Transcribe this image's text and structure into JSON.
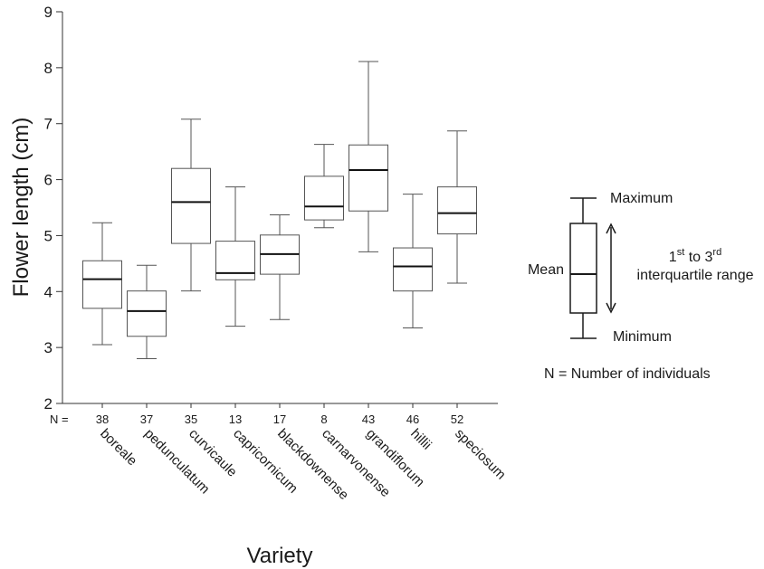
{
  "chart_data": {
    "type": "boxplot",
    "ylabel": "Flower length (cm)",
    "xlabel": "Variety",
    "ylim": [
      2,
      9
    ],
    "yticks": [
      2,
      3,
      4,
      5,
      6,
      7,
      8,
      9
    ],
    "n_prefix": "N =",
    "categories": [
      "boreale",
      "pedunculatum",
      "curvicaule",
      "capricornicum",
      "blackdownense",
      "carnarvonense",
      "grandiflorum",
      "hillii",
      "speciosum"
    ],
    "n": [
      "38",
      "37",
      "35",
      "13",
      "17",
      "8",
      "43",
      "46",
      "52"
    ],
    "boxes": [
      {
        "min": 3.05,
        "q1": 3.7,
        "mean": 4.22,
        "q3": 4.55,
        "max": 5.23
      },
      {
        "min": 2.8,
        "q1": 3.2,
        "mean": 3.65,
        "q3": 4.01,
        "max": 4.47
      },
      {
        "min": 4.01,
        "q1": 4.86,
        "mean": 5.6,
        "q3": 6.2,
        "max": 7.08
      },
      {
        "min": 3.38,
        "q1": 4.21,
        "mean": 4.33,
        "q3": 4.9,
        "max": 5.87
      },
      {
        "min": 3.5,
        "q1": 4.31,
        "mean": 4.67,
        "q3": 5.01,
        "max": 5.37
      },
      {
        "min": 5.14,
        "q1": 5.28,
        "mean": 5.52,
        "q3": 6.06,
        "max": 6.63
      },
      {
        "min": 4.71,
        "q1": 5.44,
        "mean": 6.17,
        "q3": 6.62,
        "max": 8.11
      },
      {
        "min": 3.35,
        "q1": 4.01,
        "mean": 4.45,
        "q3": 4.78,
        "max": 5.74
      },
      {
        "min": 4.15,
        "q1": 5.03,
        "mean": 5.4,
        "q3": 5.87,
        "max": 6.87
      }
    ]
  },
  "legend": {
    "maximum": "Maximum",
    "minimum": "Minimum",
    "mean": "Mean",
    "range_1": "1",
    "range_sup1": "st",
    "range_2": " to 3",
    "range_sup2": "rd",
    "range_line2": "interquartile range",
    "n_note": "N = Number of individuals"
  }
}
